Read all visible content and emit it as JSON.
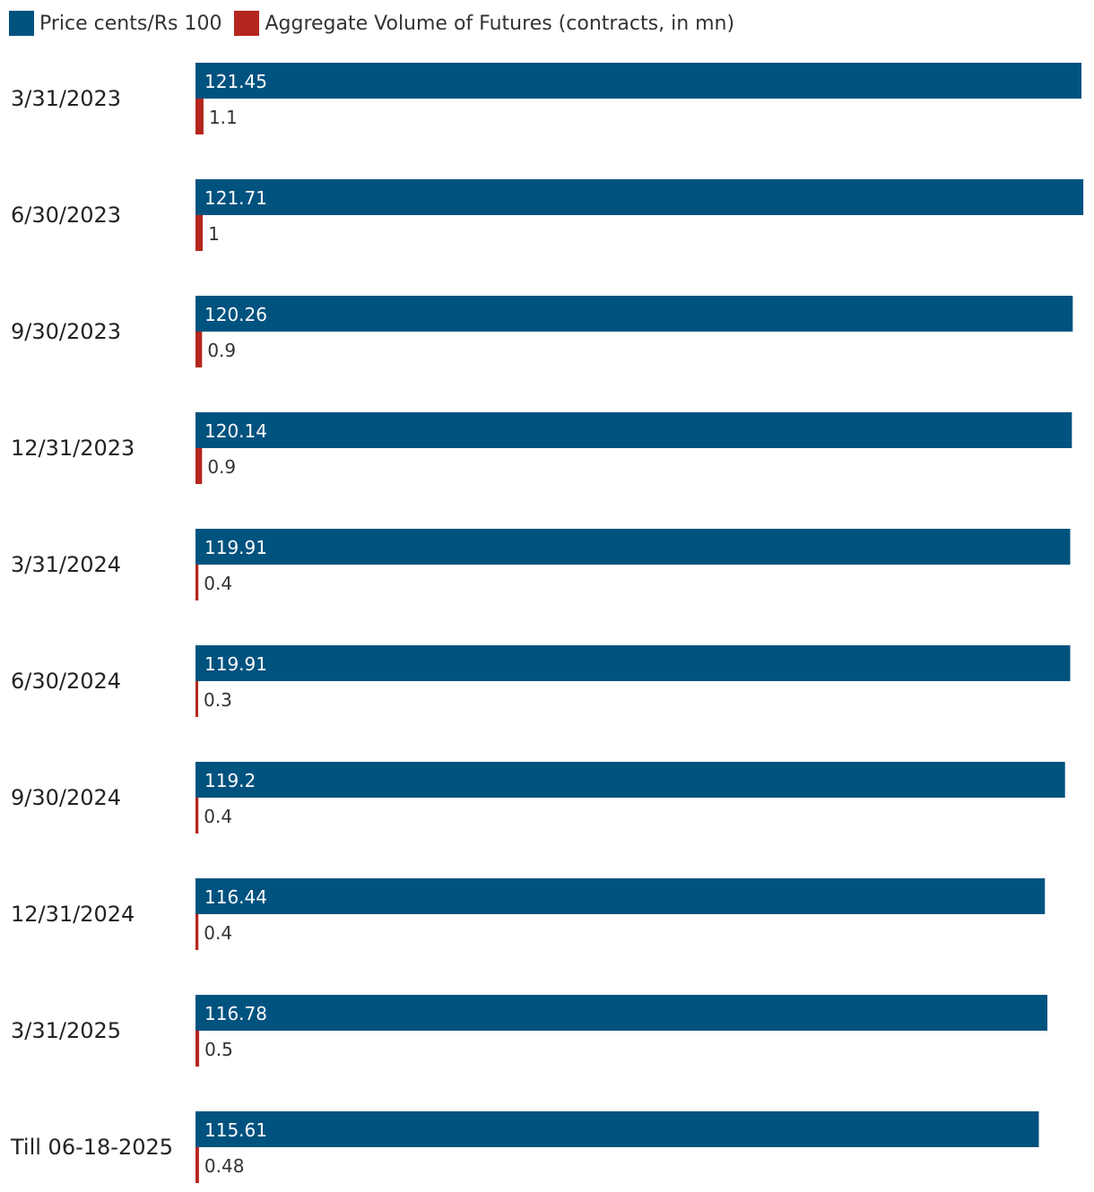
{
  "chart_data": {
    "type": "bar",
    "orientation": "horizontal",
    "legend_position": "top-left",
    "grid": false,
    "categories": [
      "3/31/2023",
      "6/30/2023",
      "9/30/2023",
      "12/31/2023",
      "3/31/2024",
      "6/30/2024",
      "9/30/2024",
      "12/31/2024",
      "3/31/2025",
      "Till 06-18-2025"
    ],
    "series": [
      {
        "name": "Price cents/Rs 100",
        "color": "#00527f",
        "values": [
          121.45,
          121.71,
          120.26,
          120.14,
          119.91,
          119.91,
          119.2,
          116.44,
          116.78,
          115.61
        ],
        "labels": [
          "121.45",
          "121.71",
          "120.26",
          "120.14",
          "119.91",
          "119.91",
          "119.2",
          "116.44",
          "116.78",
          "115.61"
        ]
      },
      {
        "name": "Aggregate Volume of Futures (contracts, in mn)",
        "color": "#b5261e",
        "values": [
          1.1,
          1,
          0.9,
          0.9,
          0.4,
          0.3,
          0.4,
          0.4,
          0.5,
          0.48
        ],
        "labels": [
          "1.1",
          "1",
          "0.9",
          "0.9",
          "0.4",
          "0.3",
          "0.4",
          "0.4",
          "0.5",
          "0.48"
        ]
      }
    ]
  }
}
